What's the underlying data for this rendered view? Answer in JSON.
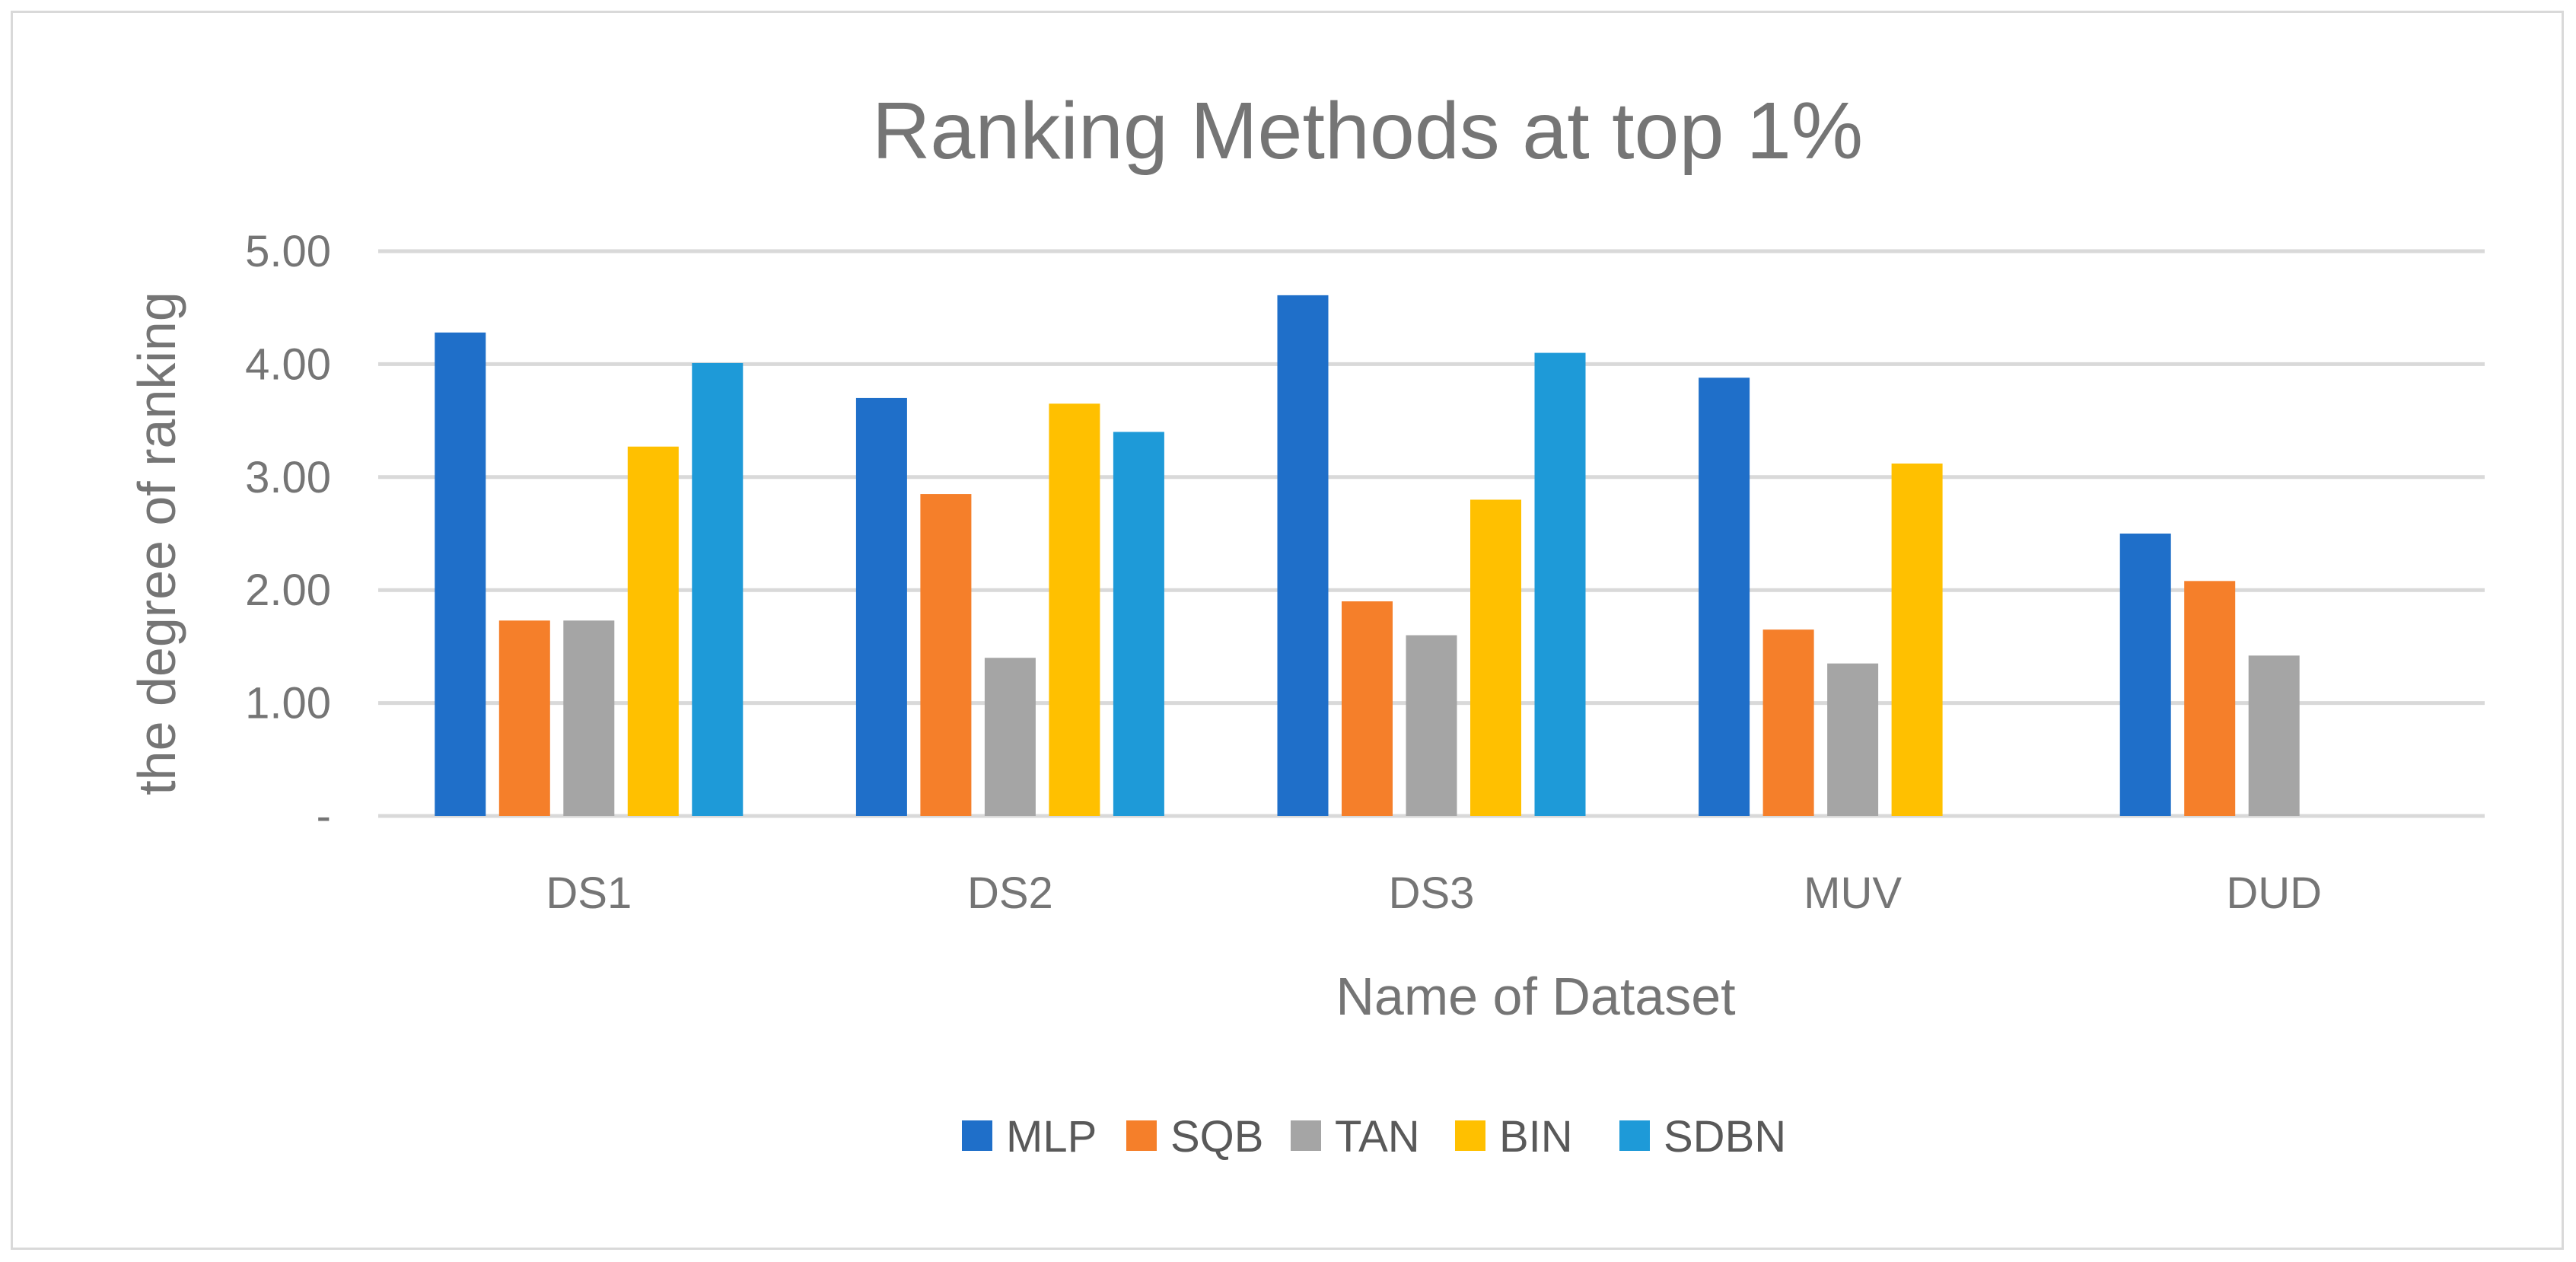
{
  "chart_data": {
    "type": "bar",
    "title": "Ranking Methods at top 1%",
    "xlabel": "Name of Dataset",
    "ylabel": "the degree of ranking",
    "categories": [
      "DS1",
      "DS2",
      "DS3",
      "MUV",
      "DUD"
    ],
    "ylim": [
      0,
      5
    ],
    "yticks": [
      0,
      1,
      2,
      3,
      4,
      5
    ],
    "ytick_labels": [
      "-",
      "1.00",
      "2.00",
      "3.00",
      "4.00",
      "5.00"
    ],
    "grid": true,
    "legend_position": "bottom",
    "series": [
      {
        "name": "MLP",
        "color": "#1f6fc9",
        "values": [
          4.28,
          3.7,
          4.61,
          3.88,
          2.5
        ]
      },
      {
        "name": "SQB",
        "color": "#f57f2a",
        "values": [
          1.73,
          2.85,
          1.9,
          1.65,
          2.08
        ]
      },
      {
        "name": "TAN",
        "color": "#a5a5a5",
        "values": [
          1.73,
          1.4,
          1.6,
          1.35,
          1.42
        ]
      },
      {
        "name": "BIN",
        "color": "#ffc000",
        "values": [
          3.27,
          3.65,
          2.8,
          3.12,
          0
        ]
      },
      {
        "name": "SDBN",
        "color": "#1e9ad8",
        "values": [
          4.01,
          3.4,
          4.1,
          0,
          0
        ]
      }
    ]
  }
}
